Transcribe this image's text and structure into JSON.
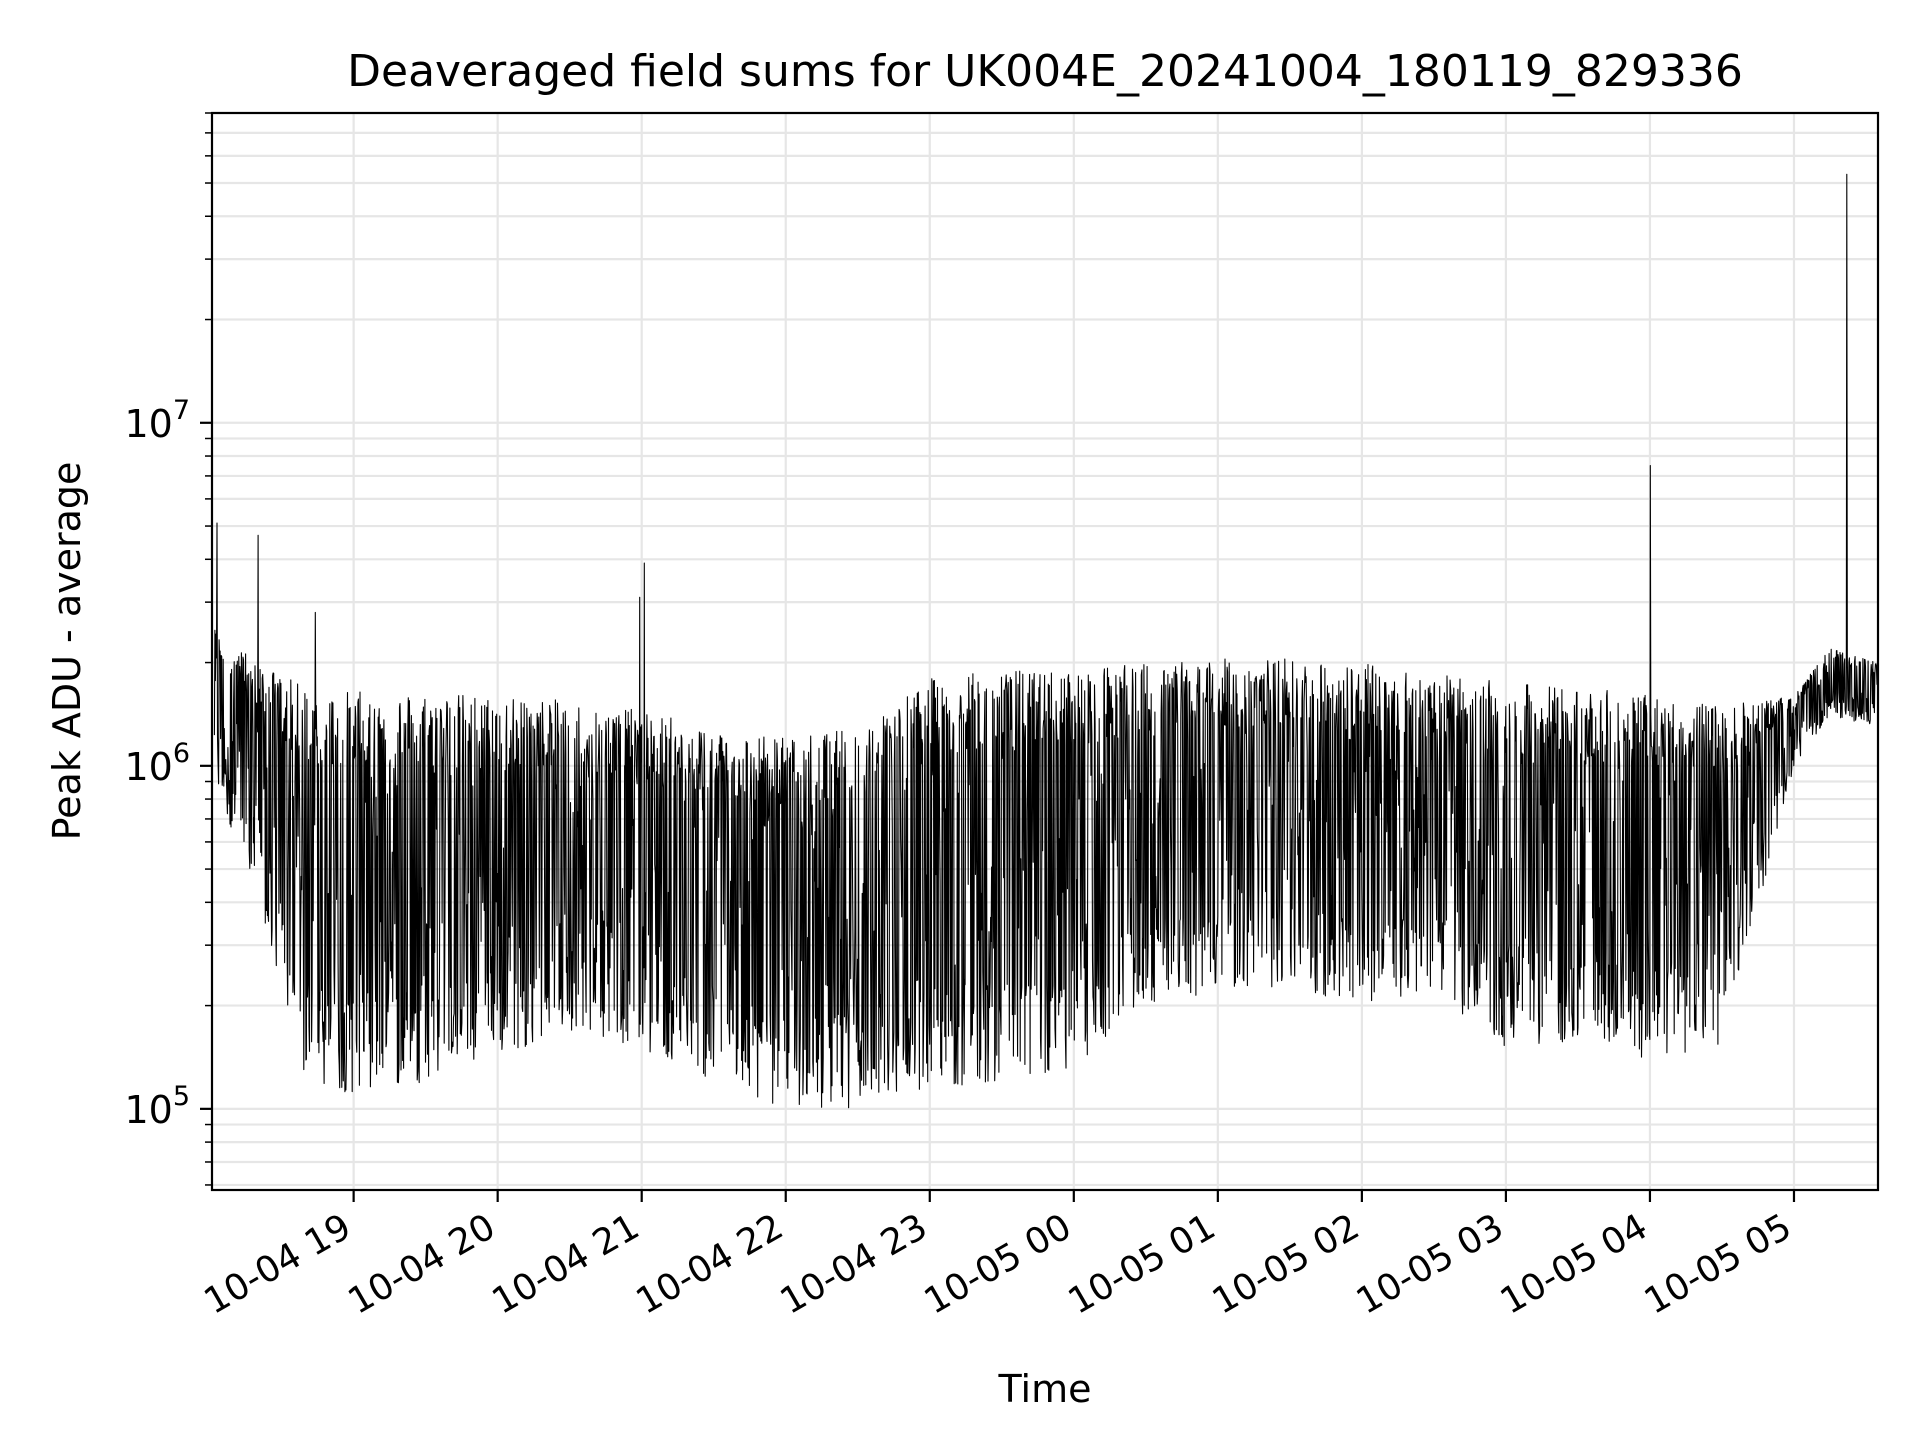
{
  "chart_data": {
    "type": "line",
    "title": "Deaveraged field sums for UK004E_20241004_180119_829336",
    "xlabel": "Time",
    "ylabel": "Peak ADU - average",
    "yscale": "log",
    "grid": true,
    "xlim": [
      "2024-10-04 18:01",
      "2024-10-05 05:35"
    ],
    "ylim": [
      58000,
      80000000
    ],
    "x_ticks": [
      {
        "time": "2024-10-04 19:00",
        "label": "10-04 19"
      },
      {
        "time": "2024-10-04 20:00",
        "label": "10-04 20"
      },
      {
        "time": "2024-10-04 21:00",
        "label": "10-04 21"
      },
      {
        "time": "2024-10-04 22:00",
        "label": "10-04 22"
      },
      {
        "time": "2024-10-04 23:00",
        "label": "10-04 23"
      },
      {
        "time": "2024-10-05 00:00",
        "label": "10-05 00"
      },
      {
        "time": "2024-10-05 01:00",
        "label": "10-05 01"
      },
      {
        "time": "2024-10-05 02:00",
        "label": "10-05 02"
      },
      {
        "time": "2024-10-05 03:00",
        "label": "10-05 03"
      },
      {
        "time": "2024-10-05 04:00",
        "label": "10-05 04"
      },
      {
        "time": "2024-10-05 05:00",
        "label": "10-05 05"
      }
    ],
    "y_ticks": [
      {
        "value": 100000,
        "base": "10",
        "exp": "5"
      },
      {
        "value": 1000000,
        "base": "10",
        "exp": "6"
      },
      {
        "value": 10000000,
        "base": "10",
        "exp": "7"
      }
    ],
    "envelope": {
      "x": [
        "2024-10-04 18:02",
        "2024-10-04 18:20",
        "2024-10-04 18:40",
        "2024-10-04 19:00",
        "2024-10-04 19:30",
        "2024-10-04 20:00",
        "2024-10-04 20:30",
        "2024-10-04 21:00",
        "2024-10-04 21:30",
        "2024-10-04 22:00",
        "2024-10-04 22:30",
        "2024-10-04 23:00",
        "2024-10-04 23:30",
        "2024-10-05 00:00",
        "2024-10-05 00:30",
        "2024-10-05 01:00",
        "2024-10-05 01:30",
        "2024-10-05 02:00",
        "2024-10-05 02:30",
        "2024-10-05 03:00",
        "2024-10-05 03:30",
        "2024-10-05 04:00",
        "2024-10-05 04:30",
        "2024-10-05 05:00",
        "2024-10-05 05:15",
        "2024-10-05 05:35"
      ],
      "high": [
        2500000,
        2000000,
        1700000,
        1650000,
        1650000,
        1600000,
        1550000,
        1450000,
        1300000,
        1200000,
        1300000,
        1800000,
        1900000,
        1900000,
        2000000,
        2050000,
        2050000,
        2000000,
        1850000,
        1750000,
        1700000,
        1600000,
        1500000,
        1600000,
        2200000,
        2000000
      ],
      "low": [
        900000,
        400000,
        120000,
        110000,
        120000,
        140000,
        170000,
        150000,
        120000,
        100000,
        100000,
        115000,
        120000,
        130000,
        200000,
        220000,
        220000,
        200000,
        220000,
        150000,
        150000,
        140000,
        150000,
        1000000,
        1400000,
        1300000
      ]
    },
    "spikes": [
      {
        "time": "2024-10-04 18:03",
        "value": 5100000
      },
      {
        "time": "2024-10-04 18:20",
        "value": 4700000
      },
      {
        "time": "2024-10-04 18:44",
        "value": 2800000
      },
      {
        "time": "2024-10-04 20:59",
        "value": 3100000
      },
      {
        "time": "2024-10-04 21:01",
        "value": 3900000
      },
      {
        "time": "2024-10-05 04:00",
        "value": 7500000
      },
      {
        "time": "2024-10-05 05:22",
        "value": 53000000
      }
    ]
  }
}
